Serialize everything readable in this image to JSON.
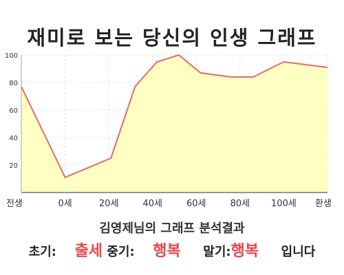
{
  "title": "재미로 보는 당신의 인생 그래프",
  "chart_data": {
    "type": "area",
    "title": "재미로 보는 당신의 인생 그래프",
    "x_labels": [
      "전생",
      "0세",
      "20세",
      "40세",
      "60세",
      "80세",
      "100세",
      "환생"
    ],
    "x": [
      -20,
      0,
      20,
      40,
      60,
      80,
      100,
      120
    ],
    "ylim": [
      0,
      100
    ],
    "xlim": [
      -20,
      120
    ],
    "y_ticks": [
      20,
      40,
      60,
      80,
      100
    ],
    "grid": true,
    "fill_color": "#ffffc4",
    "line_color": "#e36b6b",
    "series": [
      {
        "points": [
          {
            "x": -20,
            "y": 77
          },
          {
            "x": 0,
            "y": 11
          },
          {
            "x": 21,
            "y": 25
          },
          {
            "x": 32,
            "y": 77
          },
          {
            "x": 42,
            "y": 95
          },
          {
            "x": 52,
            "y": 100
          },
          {
            "x": 62,
            "y": 87
          },
          {
            "x": 76,
            "y": 84
          },
          {
            "x": 86,
            "y": 84
          },
          {
            "x": 100,
            "y": 95
          },
          {
            "x": 120,
            "y": 91
          }
        ]
      }
    ]
  },
  "analysis": {
    "title": "김영제님의 그래프 분석결과",
    "early_label": "초기:",
    "early_value": "출세",
    "mid_label": "중기:",
    "mid_value": "행복",
    "late_label": "말기:",
    "late_value": "행복",
    "ending": "입니다"
  }
}
